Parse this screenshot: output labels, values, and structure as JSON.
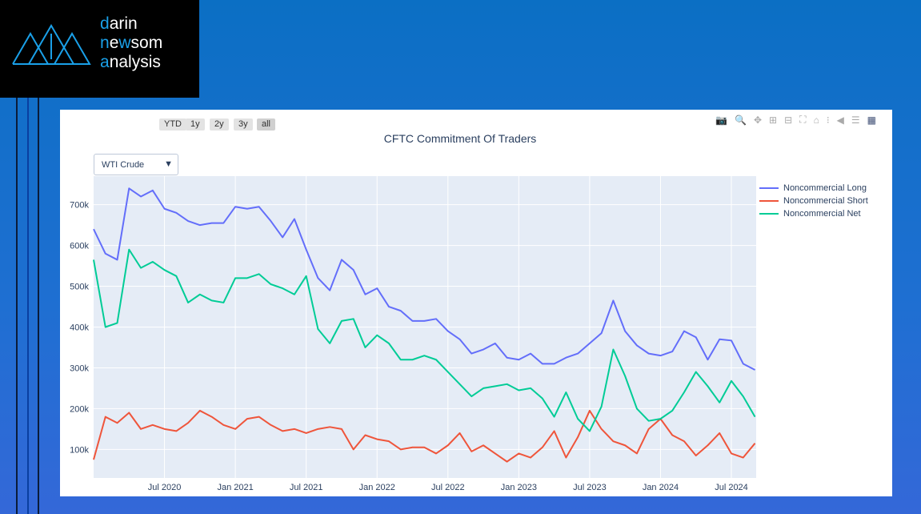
{
  "logo": {
    "line1_first": "d",
    "line1_rest": "arin",
    "line2_first": "n",
    "line2_mid1": "e",
    "line2_w": "w",
    "line2_rest": "som",
    "line3_first": "a",
    "line3_rest": "nalysis"
  },
  "range_buttons": [
    "YTD",
    "1y",
    "2y",
    "3y",
    "all"
  ],
  "dropdown": {
    "selected": "WTI Crude"
  },
  "toolbar_icons": [
    "camera-icon",
    "zoom-icon",
    "pan-icon",
    "zoom-in-icon",
    "zoom-out-icon",
    "autoscale-icon",
    "reset-axes-icon",
    "spike-lines-icon",
    "hover-closest-icon",
    "hover-compare-icon",
    "plotly-logo-icon"
  ],
  "colors": {
    "long": "#636efa",
    "short": "#ef553b",
    "net": "#00cc96",
    "plot_bg": "#e5ecf6"
  },
  "chart_data": {
    "type": "line",
    "title": "CFTC Commitment Of Traders",
    "xlabel": "",
    "ylabel": "",
    "ylim": [
      30000,
      770000
    ],
    "xlim": [
      "2020-01",
      "2024-09"
    ],
    "yticks": [
      100000,
      200000,
      300000,
      400000,
      500000,
      600000,
      700000
    ],
    "ytick_labels": [
      "100k",
      "200k",
      "300k",
      "400k",
      "500k",
      "600k",
      "700k"
    ],
    "xticks": [
      "2020-07",
      "2021-01",
      "2021-07",
      "2022-01",
      "2022-07",
      "2023-01",
      "2023-07",
      "2024-01",
      "2024-07"
    ],
    "xtick_labels": [
      "Jul 2020",
      "Jan 2021",
      "Jul 2021",
      "Jan 2022",
      "Jul 2022",
      "Jan 2023",
      "Jul 2023",
      "Jan 2024",
      "Jul 2024"
    ],
    "legend_position": "top-right",
    "x": [
      "2020-01",
      "2020-02",
      "2020-03",
      "2020-04",
      "2020-05",
      "2020-06",
      "2020-07",
      "2020-08",
      "2020-09",
      "2020-10",
      "2020-11",
      "2020-12",
      "2021-01",
      "2021-02",
      "2021-03",
      "2021-04",
      "2021-05",
      "2021-06",
      "2021-07",
      "2021-08",
      "2021-09",
      "2021-10",
      "2021-11",
      "2021-12",
      "2022-01",
      "2022-02",
      "2022-03",
      "2022-04",
      "2022-05",
      "2022-06",
      "2022-07",
      "2022-08",
      "2022-09",
      "2022-10",
      "2022-11",
      "2022-12",
      "2023-01",
      "2023-02",
      "2023-03",
      "2023-04",
      "2023-05",
      "2023-06",
      "2023-07",
      "2023-08",
      "2023-09",
      "2023-10",
      "2023-11",
      "2023-12",
      "2024-01",
      "2024-02",
      "2024-03",
      "2024-04",
      "2024-05",
      "2024-06",
      "2024-07",
      "2024-08",
      "2024-09"
    ],
    "series": [
      {
        "name": "Noncommercial Long",
        "values": [
          640000,
          580000,
          565000,
          740000,
          720000,
          735000,
          690000,
          680000,
          660000,
          650000,
          655000,
          655000,
          695000,
          690000,
          695000,
          660000,
          620000,
          665000,
          590000,
          520000,
          490000,
          565000,
          540000,
          480000,
          495000,
          450000,
          440000,
          415000,
          415000,
          420000,
          390000,
          370000,
          335000,
          345000,
          360000,
          325000,
          320000,
          335000,
          310000,
          310000,
          325000,
          335000,
          360000,
          385000,
          465000,
          390000,
          355000,
          335000,
          330000,
          340000,
          390000,
          375000,
          320000,
          370000,
          367000,
          310000,
          295000
        ]
      },
      {
        "name": "Noncommercial Short",
        "values": [
          75000,
          180000,
          165000,
          190000,
          150000,
          160000,
          150000,
          145000,
          165000,
          195000,
          180000,
          160000,
          150000,
          175000,
          180000,
          160000,
          145000,
          150000,
          140000,
          150000,
          155000,
          150000,
          100000,
          135000,
          125000,
          120000,
          100000,
          105000,
          105000,
          90000,
          110000,
          140000,
          95000,
          110000,
          90000,
          70000,
          90000,
          80000,
          105000,
          145000,
          80000,
          130000,
          195000,
          150000,
          120000,
          110000,
          90000,
          150000,
          175000,
          135000,
          120000,
          85000,
          110000,
          140000,
          90000,
          80000,
          115000
        ]
      },
      {
        "name": "Noncommercial Net",
        "values": [
          565000,
          400000,
          410000,
          590000,
          545000,
          560000,
          540000,
          525000,
          460000,
          480000,
          465000,
          460000,
          520000,
          520000,
          530000,
          505000,
          495000,
          480000,
          525000,
          395000,
          360000,
          415000,
          420000,
          350000,
          380000,
          360000,
          320000,
          320000,
          330000,
          320000,
          290000,
          260000,
          230000,
          250000,
          255000,
          260000,
          245000,
          250000,
          225000,
          180000,
          240000,
          175000,
          145000,
          205000,
          345000,
          280000,
          200000,
          170000,
          175000,
          195000,
          240000,
          290000,
          255000,
          215000,
          268000,
          230000,
          180000
        ]
      }
    ]
  }
}
